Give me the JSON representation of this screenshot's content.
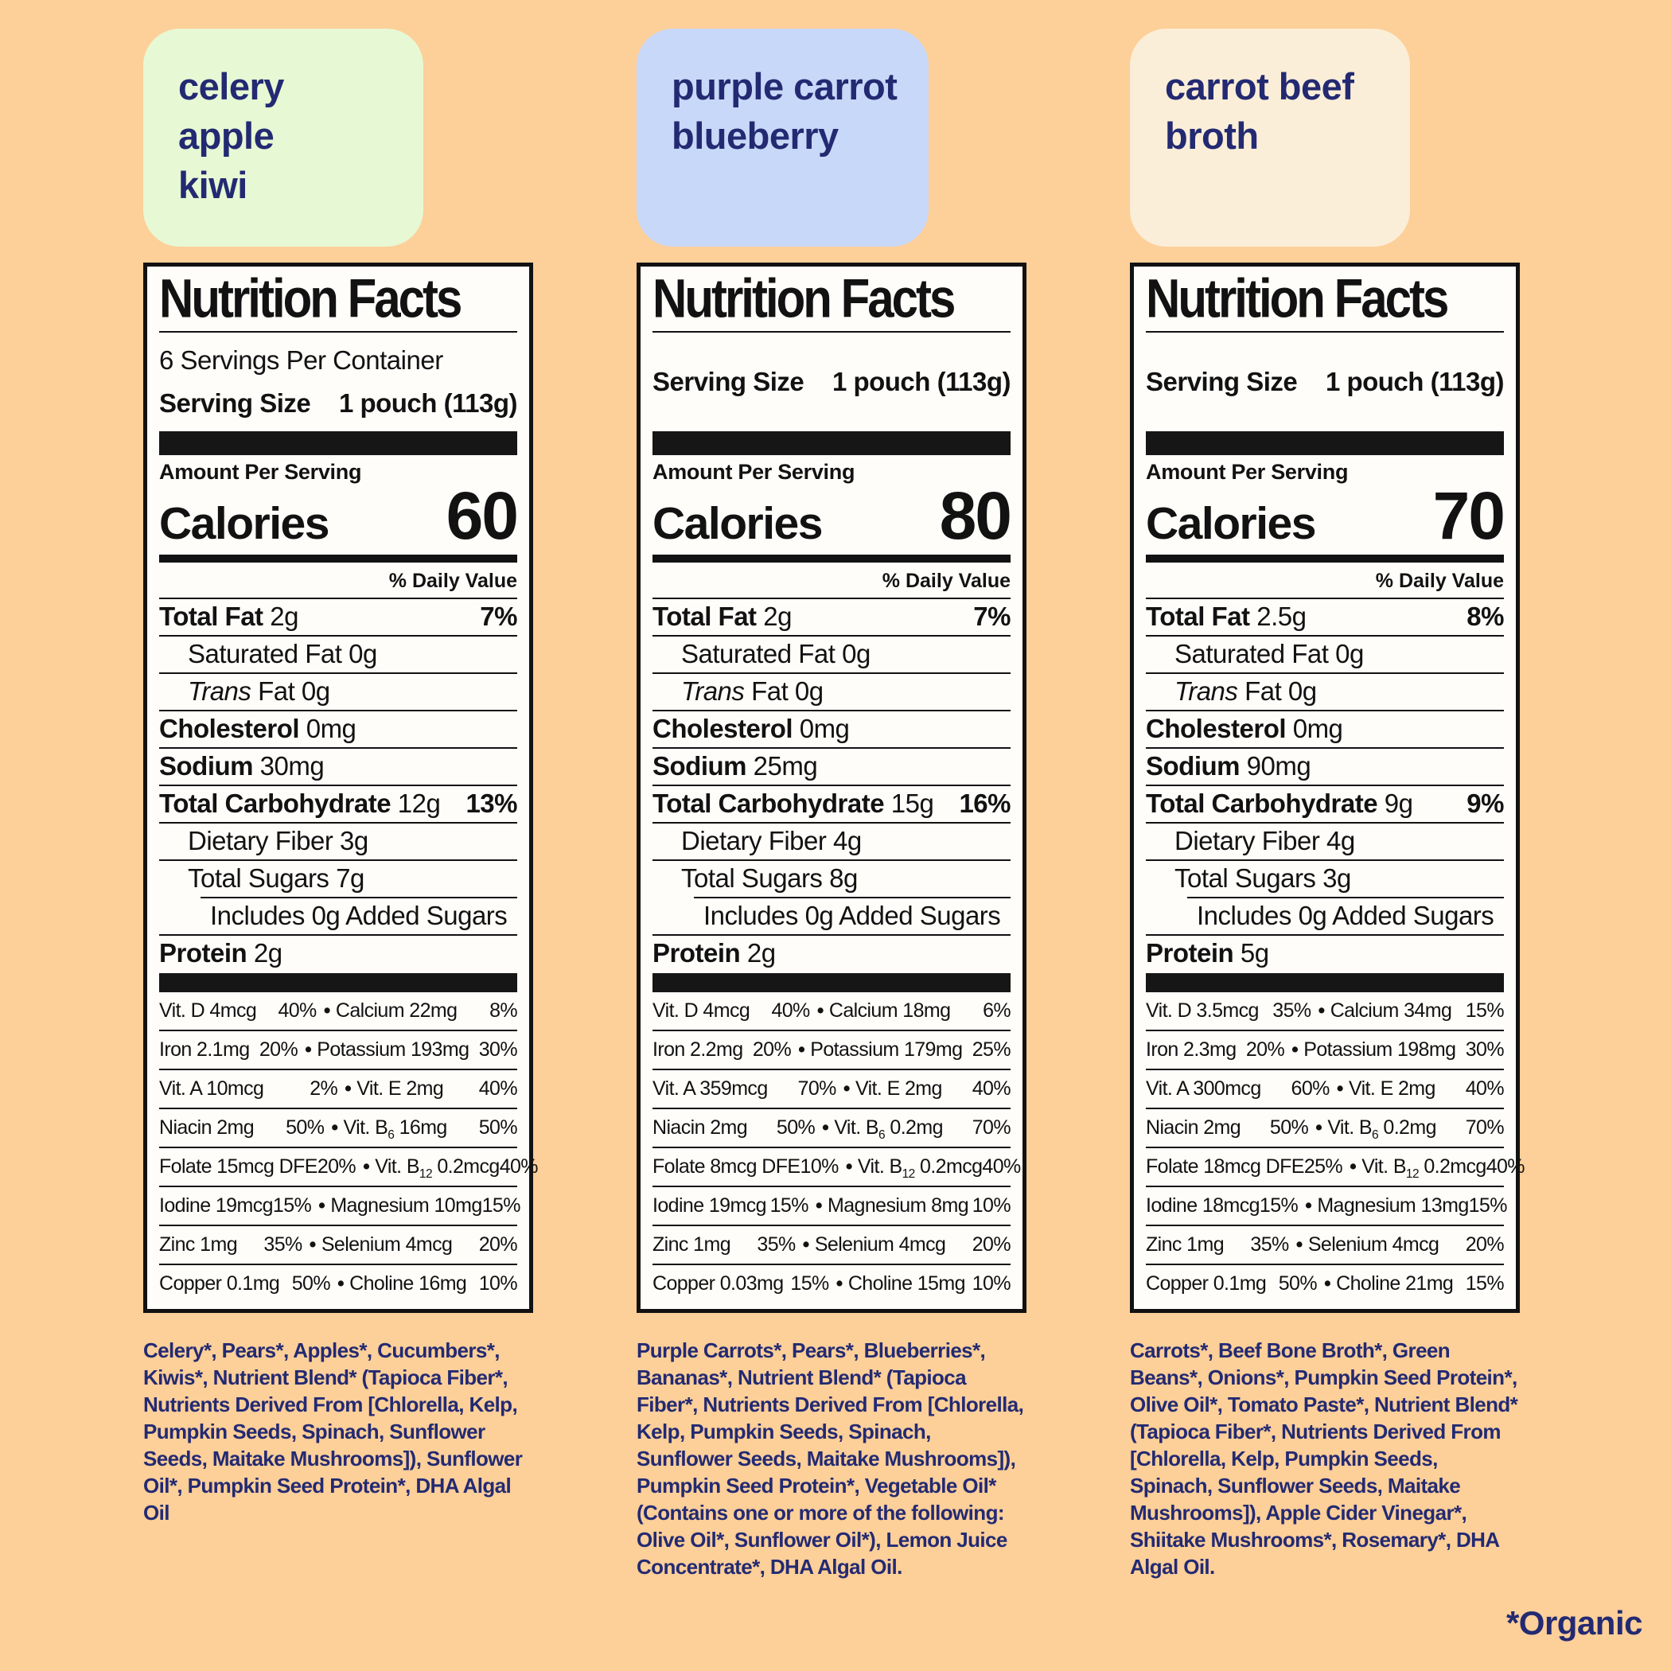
{
  "page": {
    "background": "#fdcf99",
    "text_color": "#232a72",
    "footnote": "*Organic"
  },
  "products": [
    {
      "name": "celery\napple\nkiwi",
      "chip_color": "#e7f8d4",
      "label": {
        "title": "Nutrition Facts",
        "servings_per_container": "6 Servings Per Container",
        "serving_size_label": "Serving Size",
        "serving_size_value": "1 pouch (113g)",
        "amount_per_serving": "Amount Per Serving",
        "calories_label": "Calories",
        "calories_value": "60",
        "daily_value_header": "% Daily Value",
        "nutrients": [
          {
            "bold": "Total Fat",
            "rest": "2g",
            "pct": "7%",
            "indent": 0
          },
          {
            "rest": "Saturated Fat 0g",
            "indent": 1
          },
          {
            "italic": "Trans",
            "rest": "Fat 0g",
            "indent": 1
          },
          {
            "bold": "Cholesterol",
            "rest": "0mg",
            "indent": 0
          },
          {
            "bold": "Sodium",
            "rest": "30mg",
            "indent": 0
          },
          {
            "bold": "Total Carbohydrate",
            "rest": "12g",
            "pct": "13%",
            "indent": 0
          },
          {
            "rest": "Dietary Fiber 3g",
            "indent": 1
          },
          {
            "rest": "Total Sugars 7g",
            "indent": 1
          },
          {
            "rest": "Includes 0g Added Sugars",
            "indent": 2,
            "indent_rule": true
          },
          {
            "bold": "Protein",
            "rest": "2g",
            "indent": 0
          }
        ],
        "micronutrients": [
          {
            "l": "Vit. D 4mcg",
            "lp": "40%",
            "r": "Calcium 22mg",
            "rp": "8%"
          },
          {
            "l": "Iron 2.1mg",
            "lp": "20%",
            "r": "Potassium 193mg",
            "rp": "30%"
          },
          {
            "l": "Vit. A 10mcg",
            "lp": "2%",
            "r": "Vit. E 2mg",
            "rp": "40%"
          },
          {
            "l": "Niacin 2mg",
            "lp": "50%",
            "r": "Vit. B~6~ 16mg",
            "rp": "50%"
          },
          {
            "l": "Folate 15mcg DFE",
            "lp": "20%",
            "r": "Vit. B~12~ 0.2mcg",
            "rp": "40%"
          },
          {
            "l": "Iodine 19mcg",
            "lp": "15%",
            "r": "Magnesium 10mg",
            "rp": "15%"
          },
          {
            "l": "Zinc 1mg",
            "lp": "35%",
            "r": "Selenium 4mcg",
            "rp": "20%"
          },
          {
            "l": "Copper 0.1mg",
            "lp": "50%",
            "r": "Choline 16mg",
            "rp": "10%"
          }
        ]
      },
      "ingredients": "Celery*, Pears*, Apples*, Cucumbers*, Kiwis*, Nutrient Blend* (Tapioca Fiber*, Nutrients Derived From [Chlorella, Kelp, Pumpkin Seeds, Spinach, Sunflower Seeds, Maitake Mushrooms]), Sunflower Oil*, Pumpkin Seed Protein*, DHA Algal Oil"
    },
    {
      "name": "purple carrot\nblueberry",
      "chip_color": "#c8d8f8",
      "label": {
        "title": "Nutrition Facts",
        "serving_size_label": "Serving Size",
        "serving_size_value": "1 pouch (113g)",
        "amount_per_serving": "Amount Per Serving",
        "calories_label": "Calories",
        "calories_value": "80",
        "daily_value_header": "% Daily Value",
        "nutrients": [
          {
            "bold": "Total Fat",
            "rest": "2g",
            "pct": "7%",
            "indent": 0
          },
          {
            "rest": "Saturated Fat 0g",
            "indent": 1
          },
          {
            "italic": "Trans",
            "rest": "Fat 0g",
            "indent": 1
          },
          {
            "bold": "Cholesterol",
            "rest": "0mg",
            "indent": 0
          },
          {
            "bold": "Sodium",
            "rest": "25mg",
            "indent": 0
          },
          {
            "bold": "Total Carbohydrate",
            "rest": "15g",
            "pct": "16%",
            "indent": 0
          },
          {
            "rest": "Dietary Fiber 4g",
            "indent": 1
          },
          {
            "rest": "Total Sugars 8g",
            "indent": 1
          },
          {
            "rest": "Includes 0g Added Sugars",
            "indent": 2,
            "indent_rule": true
          },
          {
            "bold": "Protein",
            "rest": "2g",
            "indent": 0
          }
        ],
        "micronutrients": [
          {
            "l": "Vit. D 4mcg",
            "lp": "40%",
            "r": "Calcium 18mg",
            "rp": "6%"
          },
          {
            "l": "Iron 2.2mg",
            "lp": "20%",
            "r": "Potassium 179mg",
            "rp": "25%"
          },
          {
            "l": "Vit. A 359mcg",
            "lp": "70%",
            "r": "Vit. E 2mg",
            "rp": "40%"
          },
          {
            "l": "Niacin 2mg",
            "lp": "50%",
            "r": "Vit. B~6~ 0.2mg",
            "rp": "70%"
          },
          {
            "l": "Folate 8mcg DFE",
            "lp": "10%",
            "r": "Vit. B~12~ 0.2mcg",
            "rp": "40%"
          },
          {
            "l": "Iodine 19mcg",
            "lp": "15%",
            "r": "Magnesium 8mg",
            "rp": "10%"
          },
          {
            "l": "Zinc 1mg",
            "lp": "35%",
            "r": "Selenium 4mcg",
            "rp": "20%"
          },
          {
            "l": "Copper 0.03mg",
            "lp": "15%",
            "r": "Choline 15mg",
            "rp": "10%"
          }
        ]
      },
      "ingredients": "Purple Carrots*, Pears*, Blueberries*, Bananas*, Nutrient Blend* (Tapioca Fiber*, Nutrients Derived From [Chlorella, Kelp, Pumpkin Seeds, Spinach, Sunflower Seeds, Maitake Mushrooms]), Pumpkin Seed Protein*, Vegetable Oil* (Contains one or more of the following: Olive Oil*, Sunflower Oil*), Lemon Juice Concentrate*, DHA Algal Oil."
    },
    {
      "name": "carrot beef\nbroth",
      "chip_color": "#fbeed8",
      "label": {
        "title": "Nutrition Facts",
        "serving_size_label": "Serving Size",
        "serving_size_value": "1 pouch (113g)",
        "amount_per_serving": "Amount Per Serving",
        "calories_label": "Calories",
        "calories_value": "70",
        "daily_value_header": "% Daily Value",
        "nutrients": [
          {
            "bold": "Total Fat",
            "rest": "2.5g",
            "pct": "8%",
            "indent": 0
          },
          {
            "rest": "Saturated Fat 0g",
            "indent": 1
          },
          {
            "italic": "Trans",
            "rest": "Fat 0g",
            "indent": 1
          },
          {
            "bold": "Cholesterol",
            "rest": "0mg",
            "indent": 0
          },
          {
            "bold": "Sodium",
            "rest": "90mg",
            "indent": 0
          },
          {
            "bold": "Total Carbohydrate",
            "rest": "9g",
            "pct": "9%",
            "indent": 0
          },
          {
            "rest": "Dietary Fiber 4g",
            "indent": 1
          },
          {
            "rest": "Total Sugars 3g",
            "indent": 1
          },
          {
            "rest": "Includes 0g Added Sugars",
            "indent": 2,
            "indent_rule": true
          },
          {
            "bold": "Protein",
            "rest": "5g",
            "indent": 0
          }
        ],
        "micronutrients": [
          {
            "l": "Vit. D 3.5mcg",
            "lp": "35%",
            "r": "Calcium 34mg",
            "rp": "15%"
          },
          {
            "l": "Iron 2.3mg",
            "lp": "20%",
            "r": "Potassium 198mg",
            "rp": "30%"
          },
          {
            "l": "Vit. A 300mcg",
            "lp": "60%",
            "r": "Vit. E 2mg",
            "rp": "40%"
          },
          {
            "l": "Niacin 2mg",
            "lp": "50%",
            "r": "Vit. B~6~ 0.2mg",
            "rp": "70%"
          },
          {
            "l": "Folate 18mcg DFE",
            "lp": "25%",
            "r": "Vit. B~12~ 0.2mcg",
            "rp": "40%"
          },
          {
            "l": "Iodine 18mcg",
            "lp": "15%",
            "r": "Magnesium 13mg",
            "rp": "15%"
          },
          {
            "l": "Zinc 1mg",
            "lp": "35%",
            "r": "Selenium 4mcg",
            "rp": "20%"
          },
          {
            "l": "Copper 0.1mg",
            "lp": "50%",
            "r": "Choline 21mg",
            "rp": "15%"
          }
        ]
      },
      "ingredients": "Carrots*, Beef Bone Broth*, Green Beans*, Onions*, Pumpkin Seed Protein*, Olive Oil*, Tomato Paste*, Nutrient Blend* (Tapioca Fiber*, Nutrients Derived From [Chlorella, Kelp, Pumpkin Seeds, Spinach, Sunflower Seeds, Maitake Mushrooms]), Apple Cider Vinegar*, Shiitake Mushrooms*, Rosemary*, DHA Algal Oil."
    }
  ]
}
